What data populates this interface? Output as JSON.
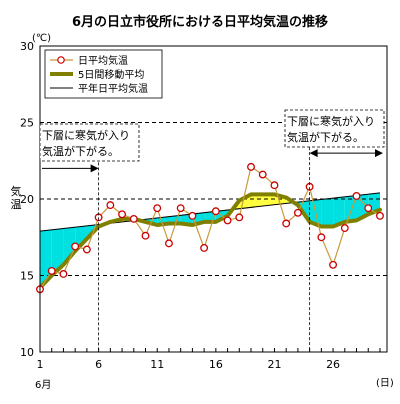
{
  "chart_data": {
    "type": "line",
    "title": "6月の日立市役所における日平均気温の推移",
    "y_unit": "(℃)",
    "ylabel": "気温",
    "x_unit": "(日)",
    "x_month_label": "6月",
    "ylim": [
      10,
      30
    ],
    "xlim": [
      1,
      30
    ],
    "y_ticks": [
      10,
      15,
      20,
      25,
      30
    ],
    "x_ticks": [
      1,
      6,
      11,
      16,
      21,
      26
    ],
    "dashed_gridlines": [
      15,
      20,
      25
    ],
    "colors": {
      "daily": "#cc0000",
      "moving": "#808000",
      "normal": "#000000",
      "fill_below_normal": "#00e0e0",
      "fill_above_normal": "#ffff40",
      "annotation_arrow": "#000000"
    },
    "series": [
      {
        "name": "日平均気温",
        "x": [
          1,
          2,
          3,
          4,
          5,
          6,
          7,
          8,
          9,
          10,
          11,
          12,
          13,
          14,
          15,
          16,
          17,
          18,
          19,
          20,
          21,
          22,
          23,
          24,
          25,
          26,
          27,
          28,
          29,
          30
        ],
        "values": [
          14.1,
          15.3,
          15.1,
          16.9,
          16.7,
          18.8,
          19.6,
          19.0,
          18.7,
          17.6,
          19.4,
          17.1,
          19.4,
          18.9,
          16.8,
          19.2,
          18.6,
          18.8,
          22.1,
          21.6,
          20.9,
          18.4,
          19.1,
          20.8,
          17.5,
          15.7,
          18.1,
          20.2,
          19.4,
          18.9
        ]
      },
      {
        "name": "5日間移動平均",
        "x": [
          1,
          2,
          3,
          4,
          5,
          6,
          7,
          8,
          9,
          10,
          11,
          12,
          13,
          14,
          15,
          16,
          17,
          18,
          19,
          20,
          21,
          22,
          23,
          24,
          25,
          26,
          27,
          28,
          29,
          30
        ],
        "values": [
          14.2,
          15.0,
          15.7,
          16.6,
          17.4,
          18.2,
          18.5,
          18.7,
          18.7,
          18.5,
          18.3,
          18.4,
          18.4,
          18.3,
          18.5,
          18.5,
          18.9,
          19.9,
          20.3,
          20.3,
          20.3,
          20.1,
          19.6,
          18.5,
          18.2,
          18.2,
          18.5,
          18.6,
          19.0,
          19.3
        ]
      },
      {
        "name": "平年日平均気温",
        "x": [
          1,
          30
        ],
        "values": [
          17.9,
          20.4
        ]
      }
    ],
    "annotations": [
      {
        "text_line1": "下層に寒気が入り",
        "text_line2": "気温が下がる。",
        "arrow_x_from": 1,
        "arrow_x_to": 6,
        "arrow_y": 22
      },
      {
        "text_line1": "下層に寒気が入り",
        "text_line2": "気温が下がる。",
        "arrow_x_from": 24,
        "arrow_x_to": 30,
        "arrow_y": 23
      }
    ],
    "legend": {
      "placement": "top-left",
      "entries": [
        "日平均気温",
        "5日間移動平均",
        "平年日平均気温"
      ]
    }
  }
}
